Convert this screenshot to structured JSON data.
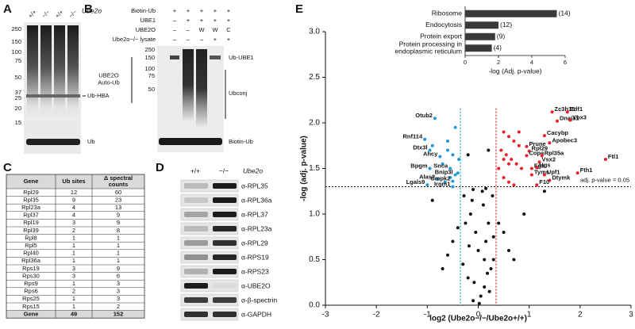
{
  "panel_a": {
    "letter": "A",
    "lanes": [
      "+/+",
      "−/−",
      "+/+",
      "−/−"
    ],
    "gene": "Ube2o",
    "markers": [
      "250",
      "150",
      "100",
      "75",
      "50",
      "37",
      "25",
      "20",
      "15"
    ],
    "bands": [
      "Ub-HBA",
      "Ub"
    ]
  },
  "panel_b": {
    "letter": "B",
    "rows": [
      {
        "label": "Biotin-Ub",
        "marks": [
          "+",
          "+",
          "+",
          "+",
          "+"
        ]
      },
      {
        "label": "UBE1",
        "marks": [
          "–",
          "+",
          "+",
          "+",
          "+"
        ]
      },
      {
        "label": "UBE2O",
        "marks": [
          "–",
          "–",
          "W",
          "W",
          "C"
        ]
      },
      {
        "label": "Ube2o−/− lysate",
        "marks": [
          "–",
          "–",
          "–",
          "+",
          "+"
        ]
      }
    ],
    "markers": [
      "250",
      "150",
      "100",
      "75",
      "50"
    ],
    "left_label": "UBE2O Auto-Ub",
    "bands": [
      "Ub-UBE1",
      "Ubconj",
      "Biotin-Ub"
    ]
  },
  "panel_c": {
    "letter": "C",
    "header": [
      "Gene",
      "Ub sites",
      "Δ spectral counts"
    ],
    "rows": [
      [
        "Rpl29",
        12,
        60
      ],
      [
        "Rpl35",
        9,
        23
      ],
      [
        "Rpl23a",
        4,
        13
      ],
      [
        "Rpl37",
        4,
        9
      ],
      [
        "Rpl19",
        3,
        9
      ],
      [
        "Rpl39",
        2,
        8
      ],
      [
        "Rpl8",
        1,
        1
      ],
      [
        "Rpl5",
        1,
        1
      ],
      [
        "Rpl40",
        1,
        1
      ],
      [
        "Rpl36a",
        1,
        1
      ],
      [
        "Rps19",
        3,
        9
      ],
      [
        "Rps30",
        3,
        6
      ],
      [
        "Rps9",
        1,
        3
      ],
      [
        "Rps6",
        2,
        3
      ],
      [
        "Rps25",
        1,
        3
      ],
      [
        "Rps15",
        1,
        2
      ]
    ],
    "footer": [
      "Gene",
      49,
      152
    ]
  },
  "panel_d": {
    "letter": "D",
    "genotypes": [
      "+/+",
      "−/−"
    ],
    "gene": "Ube2o",
    "antibodies": [
      "α-RPL35",
      "α-RPL36a",
      "α-RPL37",
      "α-RPL23a",
      "α-RPL29",
      "α-RPS19",
      "α-RPS23",
      "α-UBE2O",
      "α-β-spectrin",
      "α-GAPDH"
    ]
  },
  "panel_e": {
    "letter": "E"
  },
  "chart_data": [
    {
      "type": "hbar",
      "categories": [
        "Ribosome",
        "Endocytosis",
        "Protein export",
        "Protein processing in endoplasmic reticulum"
      ],
      "values": [
        5.5,
        2.0,
        1.8,
        1.6
      ],
      "annotations": [
        "(14)",
        "(12)",
        "(9)",
        "(4)"
      ],
      "color": "#3a3a3a",
      "xlim": [
        0,
        6
      ],
      "xticks": [
        0,
        2,
        4,
        6
      ],
      "xlabel": "-log (Adj. p-value)"
    },
    {
      "type": "scatter",
      "xlabel": "log2 (Ube2o−/−/Ube2o+/+)",
      "ylabel": "-log (adj. p-value)",
      "xlim": [
        -3,
        3
      ],
      "ylim": [
        0,
        3
      ],
      "xticks": [
        -3,
        -2,
        -1,
        0,
        1,
        2,
        3
      ],
      "yticks": [
        {
          "value": 0,
          "label": "0.0"
        },
        {
          "value": 0.5,
          "label": "0.5"
        },
        {
          "value": 1,
          "label": "1.0"
        },
        {
          "value": 1.5,
          "label": "1.5"
        },
        {
          "value": 2,
          "label": "2.0"
        },
        {
          "value": 2.5,
          "label": "2.5"
        },
        {
          "value": 3,
          "label": "3.0"
        }
      ],
      "threshold": {
        "value": 1.3,
        "label": "adj. p-value = 0.05"
      },
      "vlines": [
        {
          "value": -0.35,
          "color": "#1f9ad6"
        },
        {
          "value": 0.35,
          "color": "#e8202a"
        }
      ],
      "series": [
        {
          "color": "#111111",
          "x": [
            -0.1,
            0.05,
            0.12,
            -0.2,
            0.25,
            0.3,
            -0.3,
            0.0,
            0.15,
            -0.05,
            0.2,
            -0.15,
            0.1,
            -0.25,
            0.28,
            0.08,
            -0.12,
            0.18,
            -0.08,
            0.22,
            0.4,
            -0.4,
            0.5,
            -0.5,
            0.6,
            -0.6,
            0.7,
            -0.7,
            0.02,
            0.12,
            -0.18,
            0.3,
            -0.28,
            0.9,
            -0.9,
            0.15,
            -0.1,
            0.2,
            -0.2,
            1.3
          ],
          "values": [
            0.05,
            0.1,
            0.2,
            0.3,
            0.4,
            0.5,
            0.45,
            0.6,
            0.7,
            0.8,
            0.9,
            1.0,
            1.1,
            0.9,
            1.2,
            1.25,
            1.15,
            0.35,
            0.25,
            0.15,
            0.9,
            0.85,
            0.8,
            0.7,
            0.6,
            0.55,
            0.5,
            0.4,
            0.02,
            0.5,
            0.65,
            0.75,
            1.2,
            1.0,
            1.15,
            1.28,
            1.27,
            1.7,
            1.65,
            1.25
          ]
        },
        {
          "color": "#1f9ad6",
          "x": [
            -0.9,
            -0.6,
            -0.5,
            -0.7,
            -0.4,
            -0.55,
            -0.65,
            -0.45,
            -0.38,
            -0.6
          ],
          "values": [
            1.75,
            1.8,
            1.65,
            1.55,
            1.45,
            1.4,
            1.35,
            1.95,
            1.6,
            1.7
          ]
        },
        {
          "color": "#e8202a",
          "x": [
            0.5,
            0.6,
            0.7,
            0.8,
            0.45,
            0.55,
            0.65,
            0.75,
            0.85,
            0.5,
            0.6,
            0.7,
            0.4,
            0.8,
            0.6,
            0.5
          ],
          "values": [
            1.9,
            1.85,
            1.8,
            1.75,
            1.7,
            1.65,
            1.6,
            1.55,
            1.5,
            1.4,
            1.35,
            1.32,
            1.5,
            1.9,
            1.55,
            1.6
          ]
        },
        {
          "color": "#1f9ad6",
          "labels": [
            "Otub2",
            "Rnf114",
            "Dtx3l",
            "Ahcy",
            "Bpgm",
            "Snca",
            "Alas2",
            "Bnip3l",
            "Cmpk2",
            "Lgals9",
            "Irgm1"
          ],
          "x": [
            -0.85,
            -1.05,
            -0.95,
            -0.75,
            -0.95,
            -0.55,
            -0.8,
            -0.45,
            -0.5,
            -1.0,
            -0.5
          ],
          "values": [
            2.05,
            1.82,
            1.7,
            1.63,
            1.5,
            1.5,
            1.38,
            1.43,
            1.36,
            1.32,
            1.3
          ]
        },
        {
          "color": "#e8202a",
          "labels": [
            "Zc3h15",
            "Edf1",
            "Dnaja1",
            "Ybx3",
            "Cacybp",
            "Apobec3",
            "Prune",
            "Rpl29",
            "Copa",
            "Rpl35a",
            "Vsx2",
            "Fga",
            "Hgs",
            "Tyms",
            "Upf1",
            "Dtymk",
            "Fth1",
            "Ftl1",
            "F10"
          ],
          "x": [
            1.45,
            1.75,
            1.55,
            1.8,
            1.3,
            1.4,
            0.95,
            1.0,
            0.95,
            1.25,
            1.2,
            1.05,
            1.15,
            1.05,
            1.3,
            1.4,
            1.95,
            2.5,
            1.15
          ],
          "values": [
            2.12,
            2.12,
            2.02,
            2.03,
            1.86,
            1.78,
            1.74,
            1.69,
            1.64,
            1.64,
            1.57,
            1.5,
            1.51,
            1.43,
            1.43,
            1.37,
            1.45,
            1.6,
            1.32
          ]
        }
      ]
    }
  ]
}
